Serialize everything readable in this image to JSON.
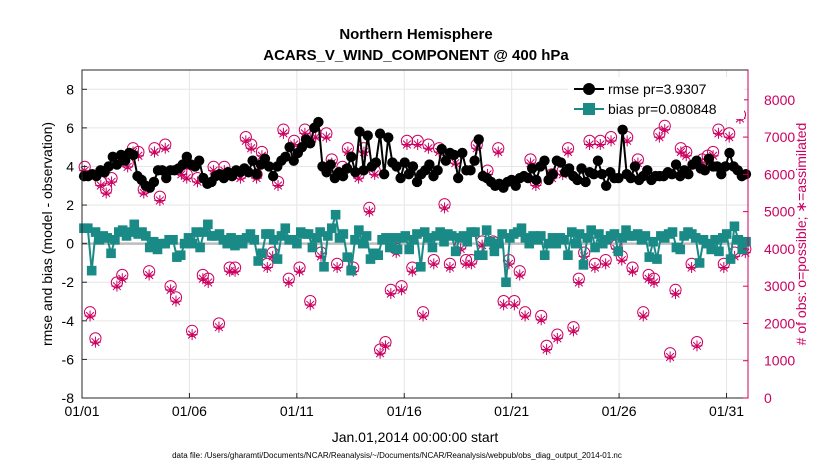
{
  "chart_data": {
    "type": "scatter",
    "title": "Northern Hemisphere",
    "subtitle": "ACARS_V_WIND_COMPONENT @ 400 hPa",
    "xlabel": "Jan.01,2014 00:00:00 start",
    "ylabel": "rmse and bias (model - observation)",
    "ylabel_right": "# of obs: o=possible; ∗=assimilated",
    "footer": "data file: /Users/gharamti/Documents/NCAR/Reanalysis/~/Documents/NCAR/Reanalysis/webpub/obs_diag_output_2014-01.nc",
    "xlim": [
      1,
      32
    ],
    "ylim": [
      -8,
      9
    ],
    "ylim_right": [
      0,
      8800
    ],
    "xticks": [
      1,
      6,
      11,
      16,
      21,
      26,
      31
    ],
    "xtick_labels": [
      "01/01",
      "01/06",
      "01/11",
      "01/16",
      "01/21",
      "01/26",
      "01/31"
    ],
    "yticks": [
      -8,
      -6,
      -4,
      -2,
      0,
      2,
      4,
      6,
      8
    ],
    "yticks_right": [
      0,
      1000,
      2000,
      3000,
      4000,
      5000,
      6000,
      7000,
      8000
    ],
    "grid": true,
    "legend_position": "top-right",
    "colors": {
      "rmse": "#000000",
      "bias": "#1a8a86",
      "obs": "#cc0060",
      "zero_line": "#bdbdbd"
    },
    "series": [
      {
        "name": "rmse pr=3.9307",
        "axis": "left",
        "marker": "circle-filled",
        "values": [
          3.5,
          3.5,
          3.6,
          3.5,
          3.8,
          3.7,
          4.0,
          4.5,
          4.1,
          4.6,
          4.3,
          4.7,
          4.6,
          3.5,
          3.3,
          3.0,
          2.9,
          3.2,
          3.8,
          3.8,
          3.4,
          3.8,
          3.8,
          3.9,
          4.1,
          4.5,
          4.1,
          4.0,
          4.3,
          3.4,
          3.1,
          3.2,
          3.5,
          3.6,
          3.4,
          3.7,
          3.5,
          3.8,
          3.7,
          3.9,
          3.7,
          4.3,
          3.6,
          4.1,
          4.4,
          4.0,
          3.5,
          4.0,
          4.3,
          4.5,
          5.0,
          4.3,
          4.7,
          5.0,
          5.4,
          5.2,
          6.0,
          6.3,
          4.0,
          3.7,
          4.1,
          3.4,
          3.7,
          3.5,
          3.9,
          4.5,
          3.7,
          5.8,
          3.8,
          5.6,
          4.0,
          4.2,
          5.7,
          3.6,
          5.5,
          4.2,
          4.0,
          3.4,
          4.2,
          3.6,
          4.0,
          3.2,
          3.6,
          3.8,
          4.1,
          3.5,
          3.8,
          4.9,
          4.3,
          4.7,
          4.6,
          3.4,
          4.7,
          3.8,
          3.8,
          4.3,
          5.4,
          3.5,
          3.4,
          3.2,
          3.0,
          3.1,
          2.9,
          3.2,
          3.3,
          3.0,
          3.4,
          3.5,
          3.4,
          3.9,
          3.3,
          4.0,
          4.3,
          3.3,
          3.6,
          4.3,
          4.2,
          3.7,
          3.9,
          3.5,
          3.3,
          3.9,
          3.2,
          3.7,
          3.6,
          4.3,
          3.6,
          3.0,
          3.7,
          3.4,
          3.4,
          5.9,
          3.6,
          3.4,
          4.0,
          3.3,
          3.5,
          3.8,
          3.3,
          3.5,
          3.5,
          3.5,
          3.7,
          3.6,
          4.1,
          3.5,
          3.8,
          3.6,
          4.1,
          4.3,
          3.9,
          3.8,
          4.4,
          4.0,
          4.0,
          3.6,
          4.0,
          4.7,
          4.0,
          3.8,
          3.5,
          3.6
        ]
      },
      {
        "name": "bias pr=0.080848",
        "axis": "left",
        "marker": "square-filled",
        "values": [
          0.8,
          0.8,
          -1.4,
          0.6,
          0.2,
          0.4,
          0.3,
          -0.5,
          0.2,
          0.6,
          0.7,
          0.4,
          0.6,
          1.0,
          0.5,
          0.6,
          0.4,
          -0.2,
          0.1,
          -0.3,
          0.0,
          0.0,
          0.2,
          0.2,
          -0.7,
          -0.6,
          0.0,
          0.3,
          0.0,
          0.6,
          -0.2,
          0.6,
          1.0,
          0.4,
          0.4,
          0.5,
          0.2,
          0.0,
          0.3,
          -0.1,
          0.2,
          0.0,
          0.3,
          0.5,
          0.2,
          -0.9,
          -0.5,
          0.5,
          0.5,
          0.2,
          -0.8,
          0.4,
          0.8,
          0.2,
          0.2,
          0.0,
          0.6,
          0.5,
          0.5,
          -0.2,
          0.3,
          0.6,
          -1.2,
          0.4,
          0.8,
          1.5,
          0.3,
          0.5,
          -0.7,
          -1.4,
          0.2,
          0.7,
          0.0,
          0.4,
          -0.8,
          -0.5,
          -0.6,
          0.2,
          0.3,
          -0.2,
          0.3,
          -0.3,
          0.3,
          0.4,
          -0.3,
          0.2,
          0.5,
          -1.2,
          0.6,
          0.3,
          -0.2,
          0.4,
          0.6,
          0.1,
          0.5,
          0.4,
          -0.4,
          0.3,
          0.4,
          0.1,
          0.6,
          0.6,
          -0.6,
          -0.6,
          0.7,
          0.1,
          -0.4,
          0.0,
          0.5,
          -2.0,
          0.3,
          0.5,
          0.6,
          0.8,
          0.3,
          0.0,
          0.4,
          0.2,
          0.4,
          -0.6,
          0.0,
          0.3,
          0.0,
          0.3,
          0.2,
          -0.6,
          0.6,
          0.0,
          0.5,
          -1.1,
          0.3,
          0.7,
          -0.2,
          0.5,
          0.0,
          0.2,
          0.4,
          0.5,
          -0.4,
          0.3,
          0.7,
          0.4,
          0.4,
          0.5,
          0.2,
          0.4,
          -0.7,
          0.1,
          -0.8,
          0.4,
          0.3,
          0.5,
          0.6,
          -0.2,
          -0.3,
          0.4,
          0.6,
          0.5,
          0.3,
          -1.0,
          0.2,
          0.0,
          -0.3,
          0.2,
          -0.4,
          0.3,
          0.5,
          -0.8,
          0.9,
          0.2,
          -0.3,
          0.1
        ]
      },
      {
        "name": "# of obs possible",
        "axis": "right",
        "marker": "circle-open",
        "values": [
          6200,
          2300,
          1600,
          5800,
          5600,
          5900,
          3100,
          3300,
          6300,
          6700,
          6600,
          5600,
          3400,
          6700,
          5400,
          6800,
          3000,
          2700,
          6100,
          6000,
          1800,
          5900,
          3300,
          3200,
          6200,
          2000,
          6200,
          3500,
          3500,
          6000,
          7000,
          6800,
          6000,
          6600,
          3600,
          3900,
          5800,
          7200,
          3200,
          6900,
          3500,
          7200,
          2600,
          7100,
          3900,
          7100,
          6400,
          3600,
          6200,
          6700,
          3500,
          6000,
          6700,
          5100,
          6100,
          1300,
          1500,
          2900,
          4000,
          3000,
          6900,
          3500,
          6900,
          2300,
          6800,
          3700,
          6700,
          5200,
          3600,
          6400,
          4100,
          3700,
          3700,
          6800,
          4200,
          6100,
          4200,
          6700,
          2600,
          3700,
          2600,
          3400,
          2300,
          6400,
          5800,
          2200,
          1400,
          6000,
          1700,
          6100,
          6700,
          1900,
          3200,
          3900,
          6900,
          3600,
          6900,
          3700,
          7000,
          4100,
          3800,
          7000,
          3500,
          6400,
          2300,
          3300,
          3200,
          7100,
          7300,
          1200,
          2900,
          6700,
          6600,
          3600,
          1500,
          6400,
          6500,
          6600,
          7200,
          3600,
          7100,
          3900,
          7600,
          4000
        ]
      },
      {
        "name": "# of obs assimilated",
        "axis": "right",
        "marker": "asterisk",
        "values": [
          6100,
          2200,
          1500,
          5700,
          5500,
          5800,
          3000,
          3200,
          6200,
          6600,
          6500,
          5500,
          3300,
          6600,
          5300,
          6700,
          2900,
          2600,
          6000,
          5900,
          1700,
          5800,
          3200,
          3100,
          6100,
          1900,
          6100,
          3400,
          3400,
          5900,
          6900,
          6700,
          5900,
          6500,
          3500,
          3800,
          5700,
          7100,
          3100,
          6800,
          3400,
          7100,
          2500,
          7000,
          3800,
          7000,
          6300,
          3500,
          6100,
          6600,
          3400,
          5900,
          6600,
          5000,
          6000,
          1200,
          1400,
          2800,
          3900,
          2900,
          6800,
          3400,
          6800,
          2200,
          6700,
          3600,
          6600,
          5100,
          3500,
          6300,
          4000,
          3600,
          3600,
          6700,
          4100,
          6000,
          4100,
          6600,
          2500,
          3600,
          2500,
          3300,
          2200,
          6300,
          5700,
          2100,
          1300,
          5900,
          1600,
          6000,
          6600,
          1800,
          3100,
          3800,
          6800,
          3500,
          6800,
          3600,
          6900,
          4000,
          3700,
          6900,
          3400,
          6300,
          2200,
          3200,
          3100,
          7000,
          7200,
          1100,
          2800,
          6600,
          6500,
          3500,
          1400,
          6300,
          6400,
          6500,
          7100,
          3500,
          7000,
          3800,
          7500,
          3900
        ]
      }
    ]
  }
}
